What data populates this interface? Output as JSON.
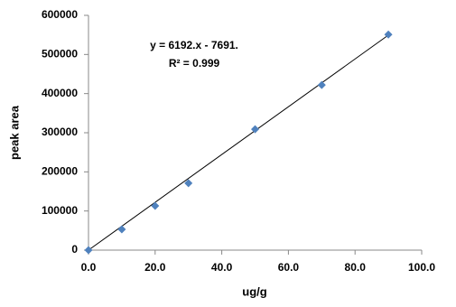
{
  "chart_data": {
    "type": "scatter",
    "x_label": "ug/g",
    "y_label": "peak area",
    "x": [
      0,
      10,
      20,
      30,
      50,
      70,
      90
    ],
    "series": [
      {
        "color": "#4f81bd",
        "values": [
          0,
          53000,
          113000,
          171000,
          309000,
          422000,
          551000
        ]
      }
    ],
    "xlim": [
      0,
      100
    ],
    "xticks": [
      {
        "value": 0,
        "label": "0.0"
      },
      {
        "value": 20,
        "label": "20.0"
      },
      {
        "value": 40,
        "label": "40.0"
      },
      {
        "value": 60,
        "label": "60.0"
      },
      {
        "value": 80,
        "label": "80.0"
      },
      {
        "value": 100,
        "label": "100.0"
      }
    ],
    "ylim": [
      0,
      600000
    ],
    "yticks": [
      0,
      100000,
      200000,
      300000,
      400000,
      500000,
      600000
    ],
    "grid": false,
    "trendline": {
      "slope": 6192,
      "intercept": -7691,
      "equation": "y = 6192.x - 7691.",
      "r2_label": "R²  = 0.999"
    }
  }
}
